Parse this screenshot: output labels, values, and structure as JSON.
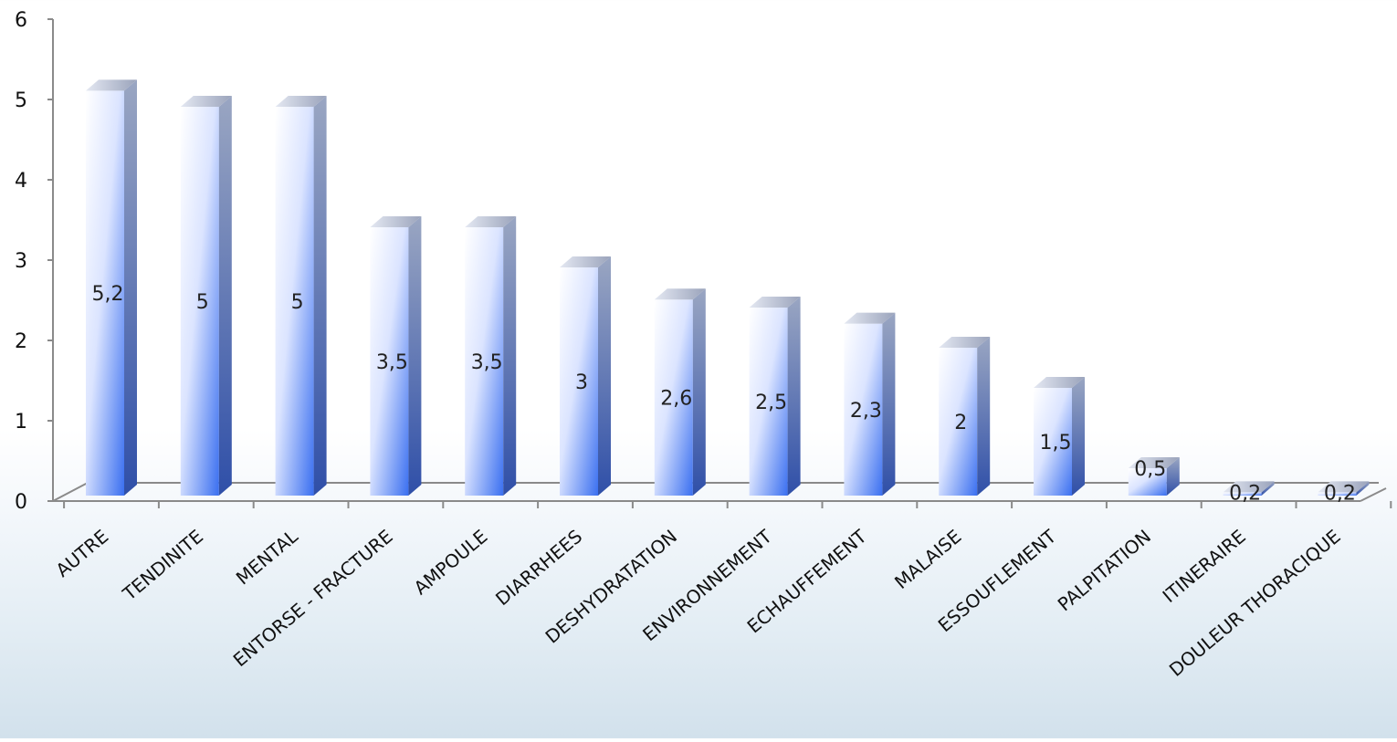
{
  "chart_data": {
    "type": "bar",
    "categories": [
      "AUTRE",
      "TENDINITE",
      "MENTAL",
      "ENTORSE - FRACTURE",
      "AMPOULE",
      "DIARRHEES",
      "DESHYDRATATION",
      "ENVIRONNEMENT",
      "ECHAUFFEMENT",
      "MALAISE",
      "ESSOUFLEMENT",
      "PALPITATION",
      "ITINERAIRE",
      "DOULEUR THORACIQUE"
    ],
    "values": [
      5.2,
      5,
      5,
      3.5,
      3.5,
      3,
      2.6,
      2.5,
      2.3,
      2,
      1.5,
      0.5,
      0.2,
      0.2
    ],
    "data_labels": [
      "5,2",
      "5",
      "5",
      "3,5",
      "3,5",
      "3",
      "2,6",
      "2,5",
      "2,3",
      "2",
      "1,5",
      "0,5",
      "0,2",
      "0,2"
    ],
    "title": "",
    "xlabel": "",
    "ylabel": "",
    "ylim": [
      0,
      6
    ],
    "yticks": [
      "0",
      "1",
      "2",
      "3",
      "4",
      "5",
      "6"
    ],
    "grid": false,
    "legend": "none",
    "style": "3d-columns",
    "colors": {
      "bar_top": "#ffffff",
      "bar_bottom": "#3a6ff0",
      "bar_side": "#5d6f9a",
      "bar_cap": "#c8cede",
      "axis": "#8a8a8a"
    }
  }
}
